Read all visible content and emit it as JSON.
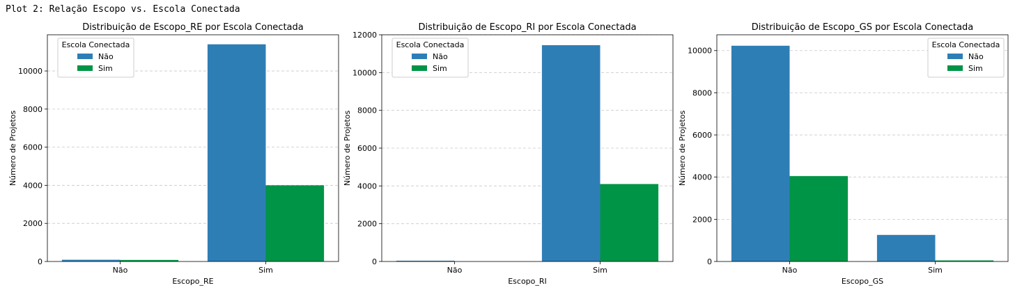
{
  "caption": "Plot 2: Relação Escopo vs. Escola Conectada",
  "chart_data": [
    {
      "type": "bar",
      "title": "Distribuição de Escopo_RE por Escola Conectada",
      "xlabel": "Escopo_RE",
      "ylabel": "Número de Projetos",
      "categories": [
        "Não",
        "Sim"
      ],
      "series": [
        {
          "name": "Não",
          "color": "#2e7eb6",
          "values": [
            90,
            11400
          ]
        },
        {
          "name": "Sim",
          "color": "#009446",
          "values": [
            80,
            4000
          ]
        }
      ],
      "ylim": [
        0,
        11900
      ],
      "yticks": [
        0,
        2000,
        4000,
        6000,
        8000,
        10000
      ],
      "legend_title": "Escola Conectada",
      "legend_position": "top-left",
      "grid": "y-dashed"
    },
    {
      "type": "bar",
      "title": "Distribuição de Escopo_RI por Escola Conectada",
      "xlabel": "Escopo_RI",
      "ylabel": "Número de Projetos",
      "categories": [
        "Não",
        "Sim"
      ],
      "series": [
        {
          "name": "Não",
          "color": "#2e7eb6",
          "values": [
            40,
            11450
          ]
        },
        {
          "name": "Sim",
          "color": "#009446",
          "values": [
            0,
            4100
          ]
        }
      ],
      "ylim": [
        0,
        12000
      ],
      "yticks": [
        0,
        2000,
        4000,
        6000,
        8000,
        10000,
        12000
      ],
      "legend_title": "Escola Conectada",
      "legend_position": "top-left",
      "grid": "y-dashed"
    },
    {
      "type": "bar",
      "title": "Distribuição de Escopo_GS por Escola Conectada",
      "xlabel": "Escopo_GS",
      "ylabel": "Número de Projetos",
      "categories": [
        "Não",
        "Sim"
      ],
      "series": [
        {
          "name": "Não",
          "color": "#2e7eb6",
          "values": [
            10230,
            1260
          ]
        },
        {
          "name": "Sim",
          "color": "#009446",
          "values": [
            4050,
            50
          ]
        }
      ],
      "ylim": [
        0,
        10750
      ],
      "yticks": [
        0,
        2000,
        4000,
        6000,
        8000,
        10000
      ],
      "legend_title": "Escola Conectada",
      "legend_position": "top-right",
      "grid": "y-dashed"
    }
  ]
}
